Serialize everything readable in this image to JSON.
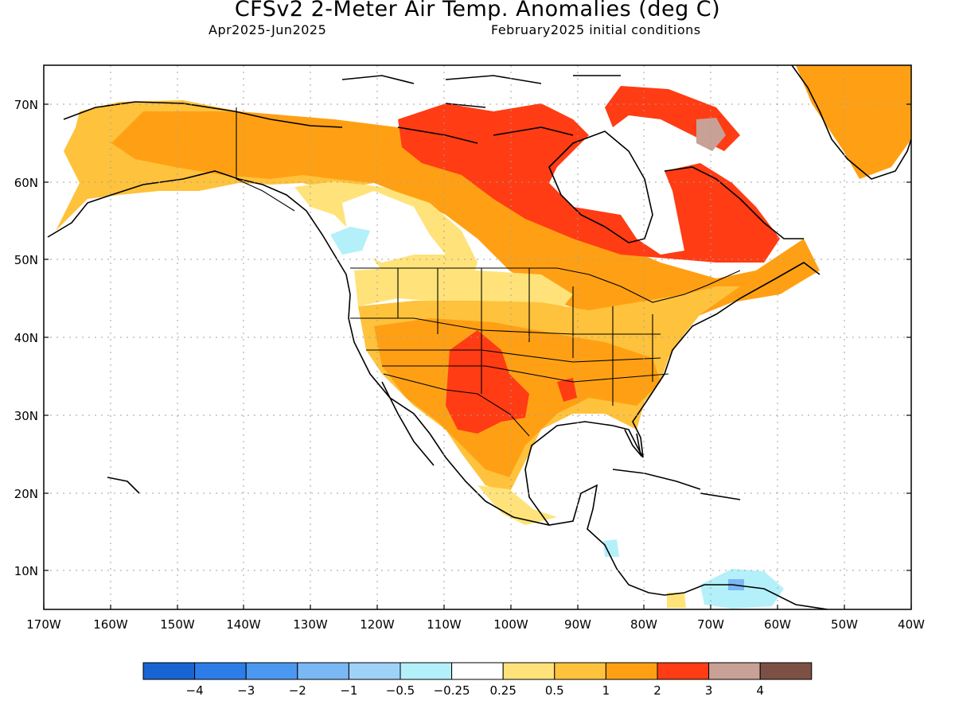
{
  "title": "CFSv2 2-Meter Air Temp. Anomalies (deg C)",
  "subtitle_left": "Apr2025-Jun2025",
  "subtitle_right": "February2025 initial conditions",
  "lat_labels": [
    "70N",
    "60N",
    "50N",
    "40N",
    "30N",
    "20N",
    "10N"
  ],
  "lon_labels": [
    "170W",
    "160W",
    "150W",
    "140W",
    "130W",
    "120W",
    "110W",
    "100W",
    "90W",
    "80W",
    "70W",
    "60W",
    "50W",
    "40W"
  ],
  "legend": {
    "colors": [
      "#1864d2",
      "#2d7de8",
      "#4b98f0",
      "#7ab8f4",
      "#9ed2f8",
      "#b4f0fa",
      "#ffffff",
      "#ffe37a",
      "#ffc23c",
      "#ffa014",
      "#ff3c14",
      "#c8a096",
      "#7d5046"
    ],
    "labels": [
      "-4",
      "-3",
      "-2",
      "-1",
      "-0.5",
      "-0.25",
      "0.25",
      "0.5",
      "1",
      "2",
      "3",
      "4"
    ]
  },
  "colors": {
    "land_outline": "#000000",
    "grid": "#a0a0a0"
  }
}
